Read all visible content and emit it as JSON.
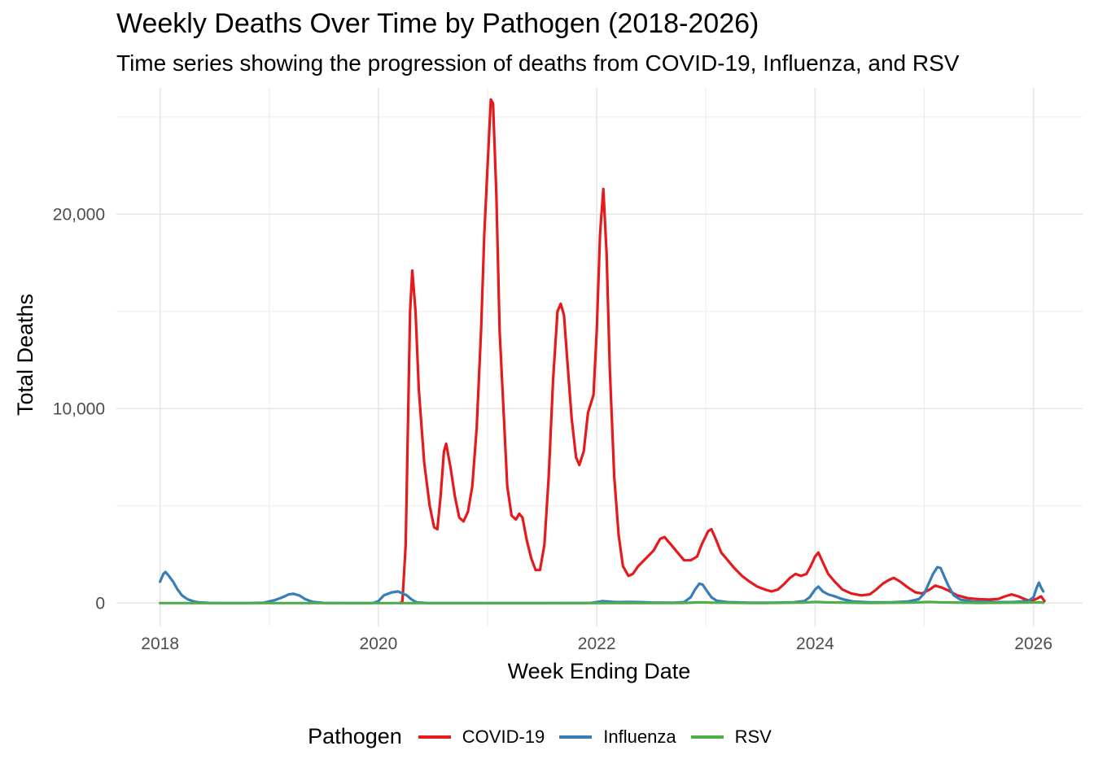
{
  "chart_data": {
    "type": "line",
    "title": "Weekly Deaths Over Time by Pathogen (2018-2026)",
    "subtitle": "Time series showing the progression of deaths from COVID-19, Influenza, and RSV",
    "xlabel": "Week Ending Date",
    "ylabel": "Total Deaths",
    "xlim": [
      2017.6,
      2026.45
    ],
    "ylim": [
      -1200,
      26500
    ],
    "x_ticks": [
      2018,
      2020,
      2022,
      2024,
      2026
    ],
    "x_tick_labels": [
      "2018",
      "2020",
      "2022",
      "2024",
      "2026"
    ],
    "y_ticks": [
      0,
      10000,
      20000
    ],
    "y_tick_labels": [
      "0",
      "10,000",
      "20,000"
    ],
    "y_minor_ticks": [
      5000,
      15000,
      25000
    ],
    "grid": true,
    "legend_title": "Pathogen",
    "legend_position": "bottom",
    "series": [
      {
        "name": "COVID-19",
        "color": "#E41A1C",
        "points": [
          [
            2020.2,
            0
          ],
          [
            2020.22,
            100
          ],
          [
            2020.25,
            3000
          ],
          [
            2020.27,
            9000
          ],
          [
            2020.29,
            15000
          ],
          [
            2020.31,
            17100
          ],
          [
            2020.34,
            15000
          ],
          [
            2020.37,
            11000
          ],
          [
            2020.42,
            7200
          ],
          [
            2020.47,
            5000
          ],
          [
            2020.51,
            3900
          ],
          [
            2020.54,
            3800
          ],
          [
            2020.57,
            5500
          ],
          [
            2020.6,
            7800
          ],
          [
            2020.62,
            8200
          ],
          [
            2020.66,
            7000
          ],
          [
            2020.7,
            5500
          ],
          [
            2020.74,
            4400
          ],
          [
            2020.78,
            4200
          ],
          [
            2020.82,
            4700
          ],
          [
            2020.86,
            6000
          ],
          [
            2020.9,
            9000
          ],
          [
            2020.94,
            14000
          ],
          [
            2020.97,
            19000
          ],
          [
            2021.0,
            22500
          ],
          [
            2021.03,
            25900
          ],
          [
            2021.05,
            25700
          ],
          [
            2021.08,
            21000
          ],
          [
            2021.11,
            14000
          ],
          [
            2021.15,
            9500
          ],
          [
            2021.18,
            6000
          ],
          [
            2021.22,
            4500
          ],
          [
            2021.26,
            4300
          ],
          [
            2021.29,
            4600
          ],
          [
            2021.32,
            4400
          ],
          [
            2021.36,
            3200
          ],
          [
            2021.4,
            2300
          ],
          [
            2021.44,
            1700
          ],
          [
            2021.48,
            1700
          ],
          [
            2021.52,
            3000
          ],
          [
            2021.56,
            6500
          ],
          [
            2021.6,
            11500
          ],
          [
            2021.64,
            15000
          ],
          [
            2021.67,
            15400
          ],
          [
            2021.7,
            14800
          ],
          [
            2021.73,
            12500
          ],
          [
            2021.77,
            9500
          ],
          [
            2021.81,
            7500
          ],
          [
            2021.84,
            7100
          ],
          [
            2021.88,
            7800
          ],
          [
            2021.92,
            9800
          ],
          [
            2021.97,
            10700
          ],
          [
            2022.0,
            14000
          ],
          [
            2022.03,
            19000
          ],
          [
            2022.06,
            21300
          ],
          [
            2022.09,
            18000
          ],
          [
            2022.12,
            12000
          ],
          [
            2022.16,
            6500
          ],
          [
            2022.2,
            3500
          ],
          [
            2022.24,
            1900
          ],
          [
            2022.29,
            1400
          ],
          [
            2022.33,
            1500
          ],
          [
            2022.38,
            1900
          ],
          [
            2022.45,
            2300
          ],
          [
            2022.52,
            2700
          ],
          [
            2022.58,
            3300
          ],
          [
            2022.62,
            3400
          ],
          [
            2022.68,
            3000
          ],
          [
            2022.74,
            2600
          ],
          [
            2022.8,
            2200
          ],
          [
            2022.86,
            2200
          ],
          [
            2022.92,
            2400
          ],
          [
            2022.96,
            3000
          ],
          [
            2023.02,
            3700
          ],
          [
            2023.05,
            3800
          ],
          [
            2023.09,
            3300
          ],
          [
            2023.14,
            2600
          ],
          [
            2023.2,
            2200
          ],
          [
            2023.26,
            1800
          ],
          [
            2023.33,
            1400
          ],
          [
            2023.4,
            1100
          ],
          [
            2023.47,
            850
          ],
          [
            2023.54,
            700
          ],
          [
            2023.6,
            600
          ],
          [
            2023.66,
            700
          ],
          [
            2023.72,
            1000
          ],
          [
            2023.77,
            1300
          ],
          [
            2023.82,
            1500
          ],
          [
            2023.87,
            1400
          ],
          [
            2023.92,
            1500
          ],
          [
            2023.96,
            1900
          ],
          [
            2024.0,
            2400
          ],
          [
            2024.03,
            2600
          ],
          [
            2024.07,
            2100
          ],
          [
            2024.12,
            1500
          ],
          [
            2024.18,
            1100
          ],
          [
            2024.25,
            700
          ],
          [
            2024.33,
            500
          ],
          [
            2024.42,
            400
          ],
          [
            2024.5,
            450
          ],
          [
            2024.56,
            700
          ],
          [
            2024.62,
            1000
          ],
          [
            2024.68,
            1200
          ],
          [
            2024.72,
            1300
          ],
          [
            2024.78,
            1100
          ],
          [
            2024.85,
            800
          ],
          [
            2024.92,
            550
          ],
          [
            2024.98,
            500
          ],
          [
            2025.05,
            700
          ],
          [
            2025.1,
            900
          ],
          [
            2025.16,
            800
          ],
          [
            2025.22,
            650
          ],
          [
            2025.3,
            400
          ],
          [
            2025.4,
            250
          ],
          [
            2025.5,
            200
          ],
          [
            2025.6,
            180
          ],
          [
            2025.68,
            220
          ],
          [
            2025.74,
            350
          ],
          [
            2025.8,
            450
          ],
          [
            2025.86,
            350
          ],
          [
            2025.92,
            200
          ],
          [
            2025.98,
            100
          ],
          [
            2026.04,
            250
          ],
          [
            2026.07,
            350
          ],
          [
            2026.1,
            100
          ]
        ]
      },
      {
        "name": "Influenza",
        "color": "#377EB8",
        "points": [
          [
            2018.0,
            1100
          ],
          [
            2018.03,
            1500
          ],
          [
            2018.05,
            1600
          ],
          [
            2018.08,
            1400
          ],
          [
            2018.12,
            1100
          ],
          [
            2018.16,
            700
          ],
          [
            2018.2,
            400
          ],
          [
            2018.25,
            200
          ],
          [
            2018.3,
            100
          ],
          [
            2018.35,
            40
          ],
          [
            2018.45,
            10
          ],
          [
            2018.6,
            0
          ],
          [
            2018.8,
            0
          ],
          [
            2018.95,
            20
          ],
          [
            2019.05,
            150
          ],
          [
            2019.12,
            300
          ],
          [
            2019.18,
            450
          ],
          [
            2019.22,
            480
          ],
          [
            2019.28,
            380
          ],
          [
            2019.33,
            200
          ],
          [
            2019.4,
            60
          ],
          [
            2019.5,
            10
          ],
          [
            2019.7,
            0
          ],
          [
            2019.95,
            0
          ],
          [
            2020.0,
            100
          ],
          [
            2020.05,
            400
          ],
          [
            2020.12,
            550
          ],
          [
            2020.18,
            600
          ],
          [
            2020.22,
            500
          ],
          [
            2020.26,
            400
          ],
          [
            2020.3,
            200
          ],
          [
            2020.35,
            40
          ],
          [
            2020.45,
            0
          ],
          [
            2021.0,
            0
          ],
          [
            2021.5,
            0
          ],
          [
            2021.95,
            10
          ],
          [
            2022.0,
            50
          ],
          [
            2022.05,
            100
          ],
          [
            2022.1,
            80
          ],
          [
            2022.15,
            60
          ],
          [
            2022.2,
            50
          ],
          [
            2022.3,
            60
          ],
          [
            2022.4,
            50
          ],
          [
            2022.5,
            30
          ],
          [
            2022.7,
            20
          ],
          [
            2022.8,
            50
          ],
          [
            2022.86,
            300
          ],
          [
            2022.9,
            700
          ],
          [
            2022.94,
            1000
          ],
          [
            2022.97,
            950
          ],
          [
            2023.0,
            700
          ],
          [
            2023.05,
            300
          ],
          [
            2023.1,
            120
          ],
          [
            2023.2,
            50
          ],
          [
            2023.4,
            20
          ],
          [
            2023.6,
            20
          ],
          [
            2023.8,
            40
          ],
          [
            2023.9,
            100
          ],
          [
            2023.95,
            300
          ],
          [
            2024.0,
            700
          ],
          [
            2024.03,
            850
          ],
          [
            2024.07,
            600
          ],
          [
            2024.12,
            450
          ],
          [
            2024.18,
            350
          ],
          [
            2024.25,
            200
          ],
          [
            2024.35,
            80
          ],
          [
            2024.5,
            40
          ],
          [
            2024.7,
            40
          ],
          [
            2024.85,
            80
          ],
          [
            2024.95,
            200
          ],
          [
            2025.0,
            500
          ],
          [
            2025.04,
            1000
          ],
          [
            2025.08,
            1500
          ],
          [
            2025.12,
            1850
          ],
          [
            2025.15,
            1800
          ],
          [
            2025.18,
            1400
          ],
          [
            2025.22,
            900
          ],
          [
            2025.27,
            400
          ],
          [
            2025.33,
            180
          ],
          [
            2025.45,
            80
          ],
          [
            2025.6,
            50
          ],
          [
            2025.8,
            50
          ],
          [
            2025.95,
            100
          ],
          [
            2026.0,
            300
          ],
          [
            2026.03,
            800
          ],
          [
            2026.05,
            1050
          ],
          [
            2026.07,
            800
          ],
          [
            2026.09,
            600
          ]
        ]
      },
      {
        "name": "RSV",
        "color": "#4DAF4A",
        "points": [
          [
            2018.0,
            0
          ],
          [
            2019.0,
            0
          ],
          [
            2020.0,
            0
          ],
          [
            2021.0,
            0
          ],
          [
            2022.0,
            0
          ],
          [
            2022.8,
            10
          ],
          [
            2022.95,
            40
          ],
          [
            2023.05,
            20
          ],
          [
            2023.5,
            0
          ],
          [
            2023.9,
            30
          ],
          [
            2024.0,
            60
          ],
          [
            2024.1,
            40
          ],
          [
            2024.5,
            10
          ],
          [
            2024.9,
            30
          ],
          [
            2025.05,
            60
          ],
          [
            2025.15,
            40
          ],
          [
            2025.5,
            10
          ],
          [
            2025.95,
            30
          ],
          [
            2026.05,
            40
          ],
          [
            2026.09,
            20
          ]
        ]
      }
    ]
  }
}
